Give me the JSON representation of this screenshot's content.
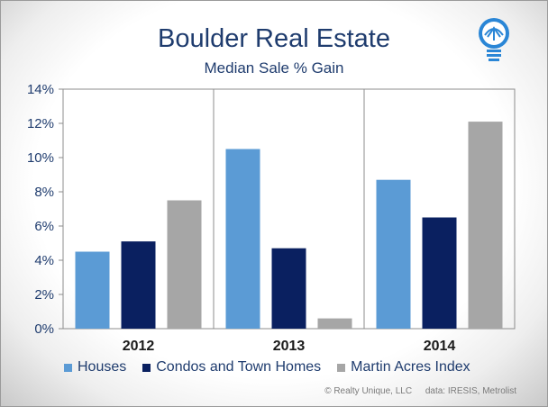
{
  "header": {
    "title": "Boulder Real Estate",
    "subtitle": "Median Sale % Gain"
  },
  "logo": {
    "icon": "lightbulb-icon",
    "color": "#2a86d6"
  },
  "chart_data": {
    "type": "bar",
    "title": "Boulder Real Estate",
    "subtitle": "Median Sale % Gain",
    "categories": [
      "2012",
      "2013",
      "2014"
    ],
    "series": [
      {
        "name": "Houses",
        "values": [
          4.5,
          10.5,
          8.7
        ],
        "color": "#5b9bd5"
      },
      {
        "name": "Condos and Town Homes",
        "values": [
          5.1,
          4.7,
          6.5
        ],
        "color": "#0a2060"
      },
      {
        "name": "Martin Acres Index",
        "values": [
          7.5,
          0.6,
          12.1
        ],
        "color": "#a6a6a6"
      }
    ],
    "ylim": [
      0,
      14
    ],
    "yticks": [
      "0%",
      "2%",
      "4%",
      "6%",
      "8%",
      "10%",
      "12%",
      "14%"
    ],
    "ytick_values": [
      0,
      2,
      4,
      6,
      8,
      10,
      12,
      14
    ],
    "xlabel": "",
    "ylabel": "",
    "grid": false,
    "legend_position": "bottom"
  },
  "footer": {
    "copyright": "© Realty Unique, LLC",
    "source": "data: IRESIS, Metrolist"
  }
}
